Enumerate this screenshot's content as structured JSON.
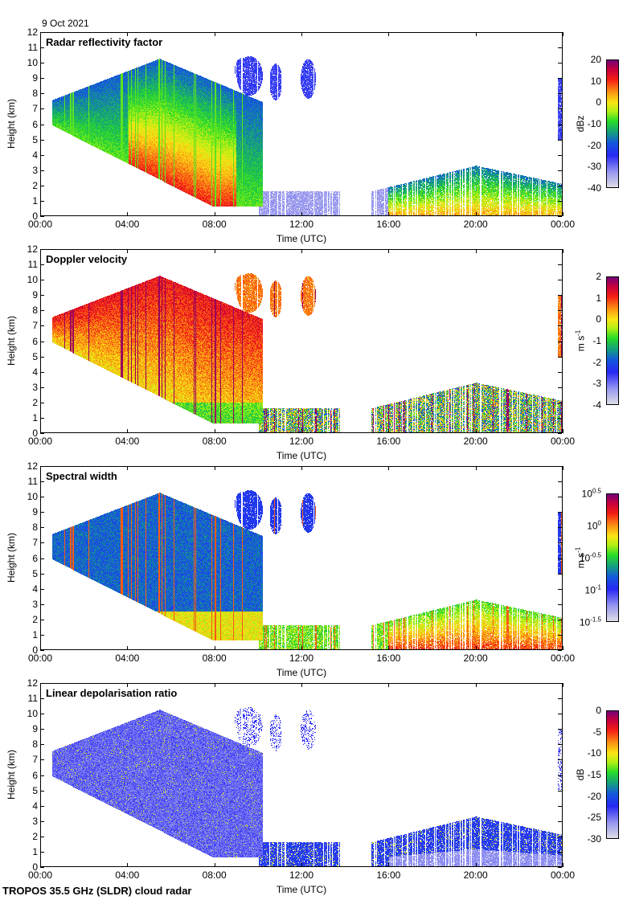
{
  "header": {
    "date": "9 Oct 2021"
  },
  "footer": {
    "instrument": "TROPOS 35.5 GHz (SLDR) cloud radar"
  },
  "chart_data": [
    {
      "type": "heatmap",
      "title": "Radar reflectivity factor",
      "xlabel": "Time (UTC)",
      "ylabel": "Height (km)",
      "x_ticks": [
        "00:00",
        "04:00",
        "08:00",
        "12:00",
        "16:00",
        "20:00",
        "00:00"
      ],
      "xlim_hours": [
        0,
        24
      ],
      "y_ticks": [
        "0",
        "1",
        "2",
        "3",
        "4",
        "5",
        "6",
        "7",
        "8",
        "9",
        "10",
        "11",
        "12"
      ],
      "ylim_km": [
        0,
        12
      ],
      "colorbar": {
        "label": "dBz",
        "range": [
          -40,
          20
        ],
        "ticks": [
          "20",
          "10",
          "0",
          "-10",
          "-20",
          "-30",
          "-40"
        ]
      },
      "field": "reflectivity"
    },
    {
      "type": "heatmap",
      "title": "Doppler velocity",
      "xlabel": "Time (UTC)",
      "ylabel": "Height (km)",
      "x_ticks": [
        "00:00",
        "04:00",
        "08:00",
        "12:00",
        "16:00",
        "20:00",
        "00:00"
      ],
      "xlim_hours": [
        0,
        24
      ],
      "y_ticks": [
        "0",
        "1",
        "2",
        "3",
        "4",
        "5",
        "6",
        "7",
        "8",
        "9",
        "10",
        "11",
        "12"
      ],
      "ylim_km": [
        0,
        12
      ],
      "colorbar": {
        "label": "m s-1",
        "range": [
          -4,
          2
        ],
        "ticks": [
          "2",
          "1",
          "0",
          "-1",
          "-2",
          "-3",
          "-4"
        ]
      },
      "field": "velocity"
    },
    {
      "type": "heatmap",
      "title": "Spectral width",
      "xlabel": "Time (UTC)",
      "ylabel": "Height (km)",
      "x_ticks": [
        "00:00",
        "04:00",
        "08:00",
        "12:00",
        "16:00",
        "20:00",
        "00:00"
      ],
      "xlim_hours": [
        0,
        24
      ],
      "y_ticks": [
        "0",
        "1",
        "2",
        "3",
        "4",
        "5",
        "6",
        "7",
        "8",
        "9",
        "10",
        "11",
        "12"
      ],
      "ylim_km": [
        0,
        12
      ],
      "colorbar": {
        "label": "m s-1",
        "scale": "log10",
        "range": [
          -1.5,
          0.5
        ],
        "ticks": [
          "10^0.5",
          "10^0",
          "10^-0.5",
          "10^-1",
          "10^-1.5"
        ]
      },
      "field": "width"
    },
    {
      "type": "heatmap",
      "title": "Linear depolarisation ratio",
      "xlabel": "Time (UTC)",
      "ylabel": "Height (km)",
      "x_ticks": [
        "00:00",
        "04:00",
        "08:00",
        "12:00",
        "16:00",
        "20:00",
        "00:00"
      ],
      "xlim_hours": [
        0,
        24
      ],
      "y_ticks": [
        "0",
        "1",
        "2",
        "3",
        "4",
        "5",
        "6",
        "7",
        "8",
        "9",
        "10",
        "11",
        "12"
      ],
      "ylim_km": [
        0,
        12
      ],
      "colorbar": {
        "label": "dB",
        "range": [
          -30,
          0
        ],
        "ticks": [
          "0",
          "-5",
          "-10",
          "-15",
          "-20",
          "-25",
          "-30"
        ]
      },
      "field": "ldr"
    }
  ],
  "cloud_features": [
    {
      "description": "Deep frontal cloud descending",
      "start_hour": 0.5,
      "end_hour": 10,
      "top_km_max": 10.5,
      "base_km_min": 0.5
    },
    {
      "description": "Upper cirrus patches",
      "start_hour": 8.8,
      "end_hour": 13.3,
      "top_km": 10.5,
      "base_km": 7
    },
    {
      "description": "Low clouds",
      "start_hour": 15.5,
      "end_hour": 24,
      "top_km": 3.5,
      "base_km": 0
    }
  ],
  "colors": {
    "axis": "#000000",
    "background": "#ffffff"
  }
}
